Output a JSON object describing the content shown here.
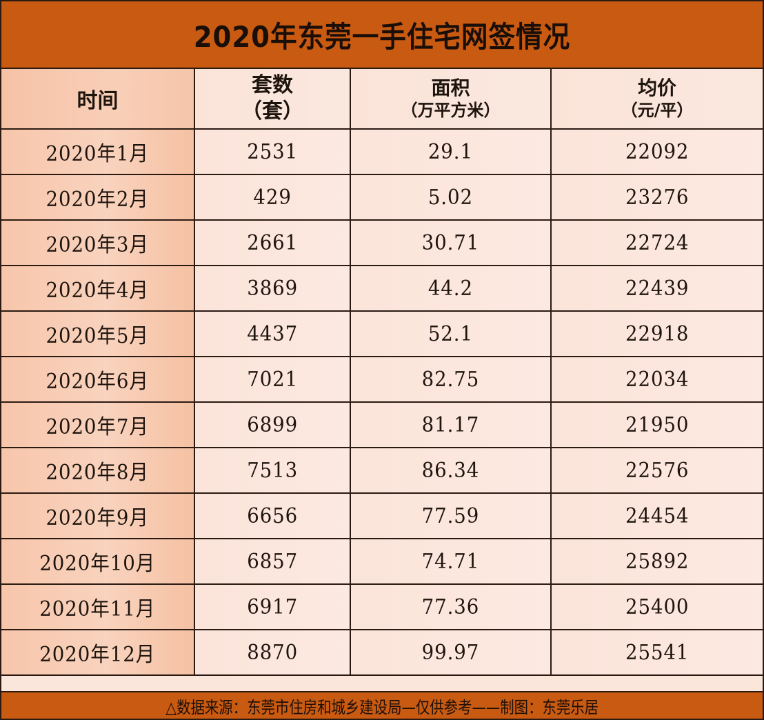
{
  "title": "2020年东莞一手住宅网签情况",
  "colors": {
    "title_bar": "#c85a12",
    "time_column": "#f7c6ab",
    "cell_background": "#fbe4da",
    "border": "#2a1a12"
  },
  "table": {
    "headers": [
      {
        "main": "时间",
        "unit": ""
      },
      {
        "main": "套数",
        "unit": "（套）"
      },
      {
        "main": "面积",
        "unit": "（万平方米）"
      },
      {
        "main": "均价",
        "unit": "（元/平）"
      }
    ],
    "rows": [
      {
        "month": "2020年1月",
        "units": "2531",
        "area": "29.1",
        "avg_price": "22092"
      },
      {
        "month": "2020年2月",
        "units": "429",
        "area": "5.02",
        "avg_price": "23276"
      },
      {
        "month": "2020年3月",
        "units": "2661",
        "area": "30.71",
        "avg_price": "22724"
      },
      {
        "month": "2020年4月",
        "units": "3869",
        "area": "44.2",
        "avg_price": "22439"
      },
      {
        "month": "2020年5月",
        "units": "4437",
        "area": "52.1",
        "avg_price": "22918"
      },
      {
        "month": "2020年6月",
        "units": "7021",
        "area": "82.75",
        "avg_price": "22034"
      },
      {
        "month": "2020年7月",
        "units": "6899",
        "area": "81.17",
        "avg_price": "21950"
      },
      {
        "month": "2020年8月",
        "units": "7513",
        "area": "86.34",
        "avg_price": "22576"
      },
      {
        "month": "2020年9月",
        "units": "6656",
        "area": "77.59",
        "avg_price": "24454"
      },
      {
        "month": "2020年10月",
        "units": "6857",
        "area": "74.71",
        "avg_price": "25892"
      },
      {
        "month": "2020年11月",
        "units": "6917",
        "area": "77.36",
        "avg_price": "25400"
      },
      {
        "month": "2020年12月",
        "units": "8870",
        "area": "99.97",
        "avg_price": "25541"
      }
    ]
  },
  "footer": {
    "source_icon": "triangle-icon",
    "text": "△数据来源：东莞市住房和城乡建设局—仅供参考——制图：东莞乐居"
  }
}
